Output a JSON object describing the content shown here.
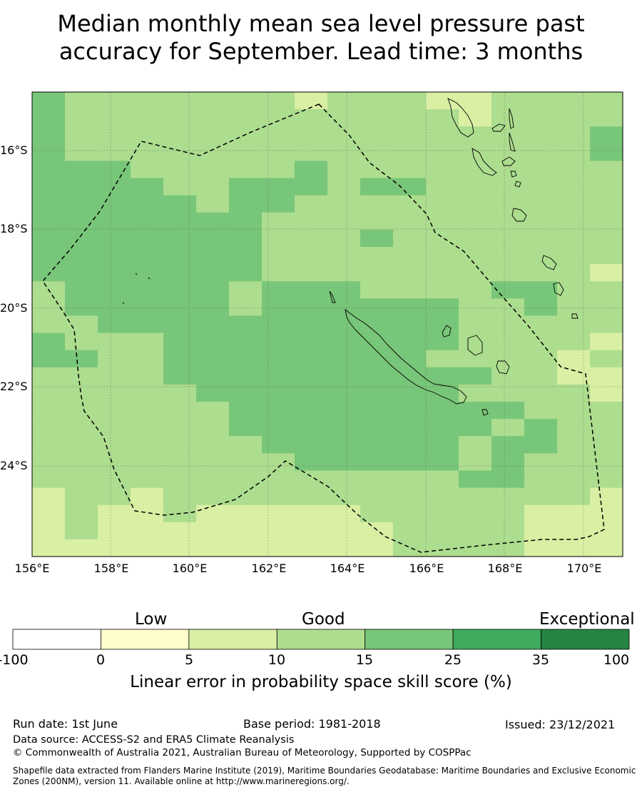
{
  "title_line1": "Median monthly mean sea level pressure past",
  "title_line2": "accuracy for September. Lead time: 3 months",
  "map": {
    "lat_ticks": [
      "16°S",
      "18°S",
      "20°S",
      "22°S",
      "24°S"
    ],
    "lon_ticks": [
      "156°E",
      "158°E",
      "160°E",
      "162°E",
      "164°E",
      "166°E",
      "168°E",
      "170°E"
    ],
    "grid": [
      [
        4,
        3,
        3,
        3,
        3,
        3,
        3,
        3,
        2,
        3,
        3,
        3,
        2,
        2,
        3,
        3,
        3,
        3
      ],
      [
        4,
        3,
        3,
        3,
        3,
        3,
        3,
        3,
        3,
        3,
        3,
        3,
        3,
        2,
        3,
        3,
        3,
        3
      ],
      [
        4,
        3,
        3,
        3,
        3,
        3,
        3,
        3,
        3,
        3,
        3,
        3,
        3,
        3,
        3,
        3,
        3,
        4
      ],
      [
        4,
        3,
        3,
        3,
        3,
        3,
        3,
        3,
        3,
        3,
        3,
        3,
        3,
        3,
        3,
        3,
        3,
        4
      ],
      [
        4,
        4,
        4,
        3,
        3,
        3,
        3,
        3,
        4,
        3,
        3,
        3,
        3,
        3,
        3,
        3,
        3,
        3
      ],
      [
        4,
        4,
        4,
        4,
        3,
        3,
        4,
        4,
        4,
        3,
        4,
        4,
        3,
        3,
        3,
        3,
        3,
        3
      ],
      [
        4,
        4,
        4,
        4,
        4,
        3,
        4,
        4,
        3,
        3,
        3,
        3,
        3,
        3,
        3,
        3,
        3,
        3
      ],
      [
        4,
        4,
        4,
        4,
        4,
        4,
        4,
        3,
        3,
        3,
        3,
        3,
        3,
        3,
        3,
        3,
        3,
        3
      ],
      [
        4,
        4,
        4,
        4,
        4,
        4,
        4,
        3,
        3,
        3,
        4,
        3,
        3,
        3,
        3,
        3,
        3,
        3
      ],
      [
        4,
        4,
        4,
        4,
        4,
        4,
        4,
        3,
        3,
        3,
        3,
        3,
        3,
        3,
        3,
        3,
        3,
        3
      ],
      [
        4,
        4,
        4,
        4,
        4,
        4,
        4,
        3,
        3,
        3,
        3,
        3,
        3,
        3,
        3,
        3,
        3,
        2
      ],
      [
        3,
        4,
        4,
        4,
        4,
        4,
        3,
        4,
        4,
        4,
        3,
        3,
        3,
        3,
        4,
        4,
        3,
        3
      ],
      [
        3,
        4,
        4,
        4,
        4,
        4,
        3,
        4,
        4,
        4,
        4,
        4,
        4,
        3,
        3,
        4,
        3,
        3
      ],
      [
        3,
        3,
        4,
        4,
        4,
        4,
        4,
        4,
        4,
        4,
        4,
        4,
        4,
        3,
        3,
        3,
        3,
        3
      ],
      [
        4,
        3,
        3,
        3,
        4,
        4,
        4,
        4,
        4,
        4,
        4,
        4,
        4,
        3,
        3,
        3,
        3,
        2
      ],
      [
        4,
        4,
        3,
        3,
        4,
        4,
        4,
        4,
        4,
        4,
        4,
        4,
        3,
        3,
        3,
        3,
        2,
        3
      ],
      [
        3,
        3,
        3,
        3,
        4,
        4,
        4,
        4,
        4,
        4,
        4,
        4,
        4,
        4,
        3,
        3,
        2,
        2
      ],
      [
        3,
        3,
        3,
        3,
        3,
        4,
        4,
        4,
        4,
        4,
        4,
        4,
        4,
        3,
        3,
        3,
        3,
        2
      ],
      [
        3,
        3,
        3,
        3,
        3,
        3,
        4,
        4,
        4,
        4,
        4,
        4,
        4,
        4,
        4,
        3,
        3,
        3
      ],
      [
        3,
        3,
        3,
        3,
        3,
        3,
        4,
        4,
        4,
        4,
        4,
        4,
        4,
        4,
        3,
        4,
        3,
        3
      ],
      [
        3,
        3,
        3,
        3,
        3,
        3,
        3,
        4,
        4,
        4,
        4,
        4,
        4,
        3,
        4,
        4,
        3,
        3
      ],
      [
        3,
        3,
        3,
        3,
        3,
        3,
        3,
        3,
        4,
        4,
        4,
        4,
        4,
        3,
        4,
        3,
        3,
        3
      ],
      [
        3,
        3,
        3,
        3,
        3,
        3,
        3,
        3,
        3,
        3,
        3,
        3,
        3,
        4,
        4,
        3,
        3,
        3
      ],
      [
        2,
        3,
        3,
        2,
        3,
        3,
        3,
        3,
        3,
        3,
        3,
        3,
        3,
        3,
        3,
        3,
        3,
        2
      ],
      [
        2,
        3,
        2,
        2,
        3,
        2,
        2,
        2,
        2,
        2,
        3,
        3,
        3,
        3,
        3,
        2,
        2,
        2
      ],
      [
        2,
        3,
        2,
        2,
        2,
        2,
        2,
        2,
        2,
        2,
        2,
        3,
        3,
        3,
        3,
        2,
        2,
        2
      ],
      [
        2,
        2,
        2,
        2,
        2,
        2,
        2,
        2,
        2,
        2,
        2,
        3,
        3,
        3,
        3,
        2,
        2,
        2
      ]
    ]
  },
  "colorbar": {
    "categories": [
      "Low",
      "Good",
      "Exceptional"
    ],
    "ticks": [
      "-100",
      "0",
      "5",
      "10",
      "15",
      "25",
      "35",
      "100"
    ],
    "colors": [
      "#ffffff",
      "#fffccc",
      "#d9efa3",
      "#addd8e",
      "#78c679",
      "#41ab5d",
      "#238443"
    ],
    "label": "Linear error in probability space skill score (%)"
  },
  "footer": {
    "run_date": "Run date: 1st June",
    "base_period": "Base period: 1981-2018",
    "issued": "Issued: 23/12/2021",
    "data_source": "Data source: ACCESS-S2 and ERA5 Climate Reanalysis",
    "copyright": "© Commonwealth of Australia 2021, Australian Bureau of Meteorology, Supported by COSPPac",
    "shapefile_line1": "Shapefile data extracted from Flanders Marine Institute (2019), Maritime Boundaries Geodatabase: Maritime Boundaries and Exclusive Economic",
    "shapefile_line2": "Zones (200NM), version 11. Available online at http://www.marineregions.org/."
  }
}
